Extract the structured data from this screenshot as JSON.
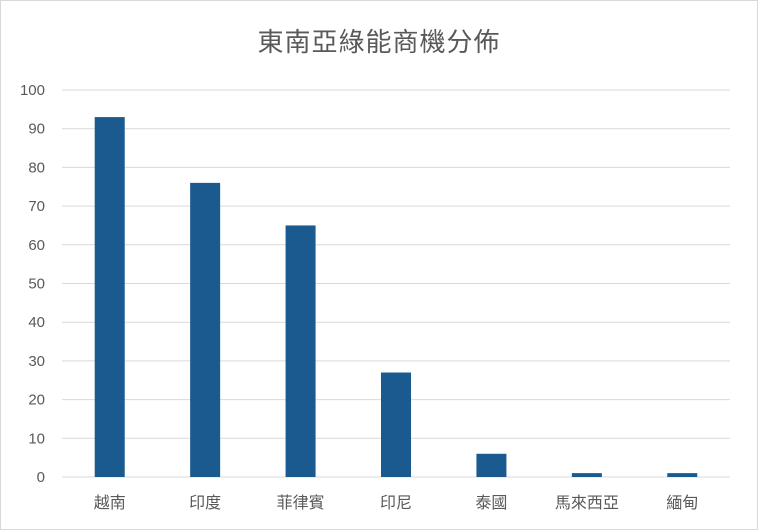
{
  "chart_data": {
    "type": "bar",
    "title": "東南亞綠能商機分佈",
    "categories": [
      "越南",
      "印度",
      "菲律賓",
      "印尼",
      "泰國",
      "馬來西亞",
      "緬甸"
    ],
    "values": [
      93,
      76,
      65,
      27,
      6,
      1,
      1
    ],
    "ylim": [
      0,
      100
    ],
    "yticks": [
      0,
      10,
      20,
      30,
      40,
      50,
      60,
      70,
      80,
      90,
      100
    ],
    "grid": true,
    "legend": "none",
    "bar_color": "#1a5a8e",
    "grid_color": "#d9d9d9"
  }
}
